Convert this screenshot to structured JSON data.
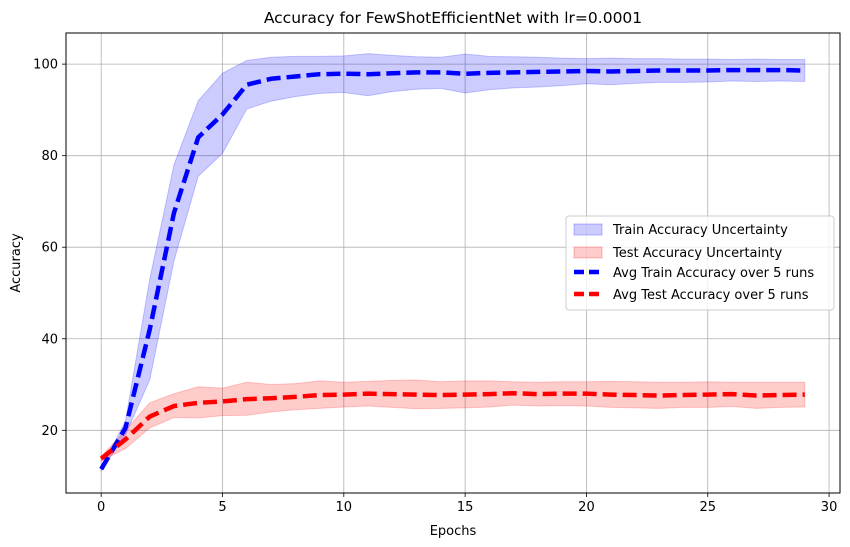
{
  "chart_data": {
    "type": "line",
    "title": "Accuracy for FewShotEfficientNet with lr=0.0001",
    "xlabel": "Epochs",
    "ylabel": "Accuracy",
    "xlim": [
      -1.45,
      30.45
    ],
    "ylim": [
      6.3,
      106.8
    ],
    "xticks": [
      0,
      5,
      10,
      15,
      20,
      25,
      30
    ],
    "yticks": [
      20,
      40,
      60,
      80,
      100
    ],
    "grid": true,
    "legend_position": "center-right",
    "x": [
      0,
      1,
      2,
      3,
      4,
      5,
      6,
      7,
      8,
      9,
      10,
      11,
      12,
      13,
      14,
      15,
      16,
      17,
      18,
      19,
      20,
      21,
      22,
      23,
      24,
      25,
      26,
      27,
      28,
      29
    ],
    "series": [
      {
        "name": "Avg Train Accuracy over 5 runs",
        "band_name": "Train Accuracy Uncertainty",
        "color": "#0000ff",
        "band_color": "#0000ff",
        "mean": [
          11.5,
          20.5,
          42.0,
          67.5,
          84.0,
          89.0,
          95.5,
          96.8,
          97.3,
          97.8,
          97.9,
          97.8,
          98.0,
          98.2,
          98.2,
          97.9,
          98.1,
          98.2,
          98.3,
          98.4,
          98.5,
          98.4,
          98.5,
          98.6,
          98.6,
          98.6,
          98.7,
          98.7,
          98.7,
          98.6
        ],
        "upper": [
          11.8,
          22.0,
          53.0,
          78.0,
          92.0,
          98.0,
          100.8,
          101.5,
          101.7,
          101.7,
          101.8,
          102.3,
          101.9,
          101.6,
          101.5,
          102.2,
          101.7,
          101.6,
          101.5,
          101.3,
          101.2,
          101.3,
          101.2,
          101.2,
          101.1,
          101.1,
          101.0,
          101.1,
          101.0,
          101.0
        ],
        "lower": [
          11.2,
          19.0,
          31.0,
          57.0,
          75.5,
          80.5,
          90.2,
          91.9,
          92.9,
          93.6,
          93.8,
          93.1,
          94.0,
          94.5,
          94.7,
          93.7,
          94.4,
          94.8,
          95.0,
          95.3,
          95.7,
          95.5,
          95.8,
          96.0,
          96.0,
          96.1,
          96.3,
          96.2,
          96.3,
          96.2
        ]
      },
      {
        "name": "Avg Test Accuracy over 5 runs",
        "band_name": "Test Accuracy Uncertainty",
        "color": "#ff0000",
        "band_color": "#ff0000",
        "mean": [
          13.8,
          18.0,
          23.0,
          25.3,
          26.0,
          26.3,
          26.8,
          27.0,
          27.3,
          27.7,
          27.8,
          28.0,
          27.9,
          27.8,
          27.7,
          27.8,
          27.9,
          28.1,
          27.9,
          28.0,
          28.0,
          27.8,
          27.7,
          27.6,
          27.7,
          27.8,
          27.9,
          27.6,
          27.7,
          27.8
        ],
        "upper": [
          14.3,
          20.0,
          26.0,
          28.0,
          29.5,
          29.2,
          30.5,
          30.0,
          30.2,
          30.8,
          30.5,
          30.7,
          30.9,
          31.0,
          30.6,
          30.8,
          30.8,
          30.6,
          30.5,
          30.6,
          30.6,
          30.7,
          30.6,
          30.5,
          30.5,
          30.6,
          30.5,
          30.5,
          30.5,
          30.5
        ],
        "lower": [
          13.3,
          16.0,
          20.5,
          22.8,
          22.7,
          23.2,
          23.3,
          24.0,
          24.5,
          24.8,
          25.1,
          25.3,
          25.0,
          24.7,
          24.8,
          24.9,
          25.1,
          25.5,
          25.3,
          25.4,
          25.3,
          25.0,
          24.9,
          24.8,
          25.0,
          25.0,
          25.2,
          24.8,
          25.0,
          25.1
        ]
      }
    ]
  }
}
